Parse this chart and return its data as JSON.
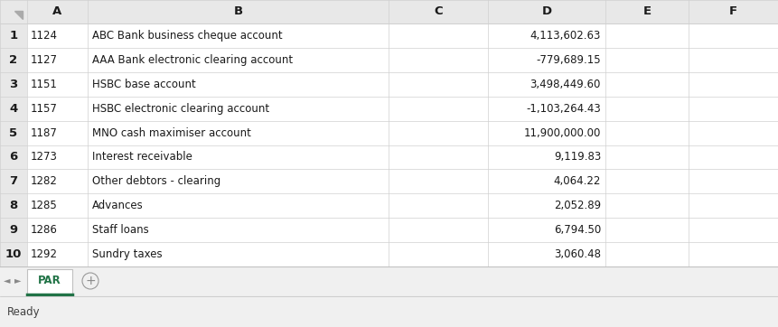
{
  "col_headers": [
    "A",
    "B",
    "C",
    "D",
    "E",
    "F"
  ],
  "row_numbers": [
    "1",
    "2",
    "3",
    "4",
    "5",
    "6",
    "7",
    "8",
    "9",
    "10"
  ],
  "col_a": [
    "1124",
    "1127",
    "1151",
    "1157",
    "1187",
    "1273",
    "1282",
    "1285",
    "1286",
    "1292"
  ],
  "col_b": [
    "ABC Bank business cheque account",
    "AAA Bank electronic clearing account",
    "HSBC base account",
    "HSBC electronic clearing account",
    "MNO cash maximiser account",
    "Interest receivable",
    "Other debtors - clearing",
    "Advances",
    "Staff loans",
    "Sundry taxes"
  ],
  "col_d": [
    "4,113,602.63",
    "-779,689.15",
    "3,498,449.60",
    "-1,103,264.43",
    "11,900,000.00",
    "9,119.83",
    "4,064.22",
    "2,052.89",
    "6,794.50",
    "3,060.48"
  ],
  "sheet_tab": "PAR",
  "status_bar": "Ready",
  "bg_color": "#ffffff",
  "header_bg": "#e8e8e8",
  "grid_color": "#d0d0d0",
  "outer_bg": "#f0f0f0",
  "tab_active_color": "#217346",
  "tab_text_color": "#217346",
  "cell_text_color": "#1a1a1a",
  "header_text_color": "#1a1a1a",
  "font_size": 8.5,
  "header_font_size": 9.5
}
